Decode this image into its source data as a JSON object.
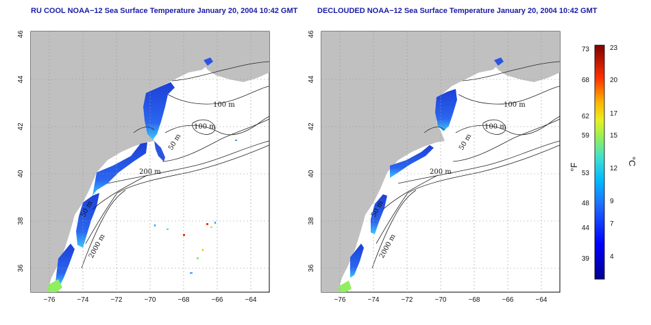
{
  "map_left": {
    "title": "RU COOL NOAA−12 Sea Surface Temperature January 20, 2004 10:42 GMT"
  },
  "map_right": {
    "title": "DECLOUDED NOAA−12 Sea Surface Temperature January 20, 2004 10:42 GMT"
  },
  "axes": {
    "lon_ticks": [
      "−76",
      "−74",
      "−72",
      "−70",
      "−68",
      "−66",
      "−64"
    ],
    "lat_ticks": [
      "46",
      "44",
      "42",
      "40",
      "38",
      "36"
    ]
  },
  "contour_labels": [
    "100 m",
    "100 m",
    "50 m",
    "200 m",
    "50 m",
    "2000 m"
  ],
  "colorbar": {
    "fahrenheit_ticks": [
      "73",
      "68",
      "62",
      "59",
      "53",
      "48",
      "44",
      "39"
    ],
    "celsius_ticks": [
      "23",
      "20",
      "17",
      "15",
      "12",
      "9",
      "7",
      "4"
    ],
    "unit_f": "°F",
    "unit_c": "°C"
  },
  "colors": {
    "land": "#c0c0c0",
    "ocean": "#ffffff",
    "title_text": "#1a1aa6",
    "sst_cold": "#1d3fd6",
    "sst_mid": "#2f9cff",
    "sst_warm": "#d01a1a"
  }
}
